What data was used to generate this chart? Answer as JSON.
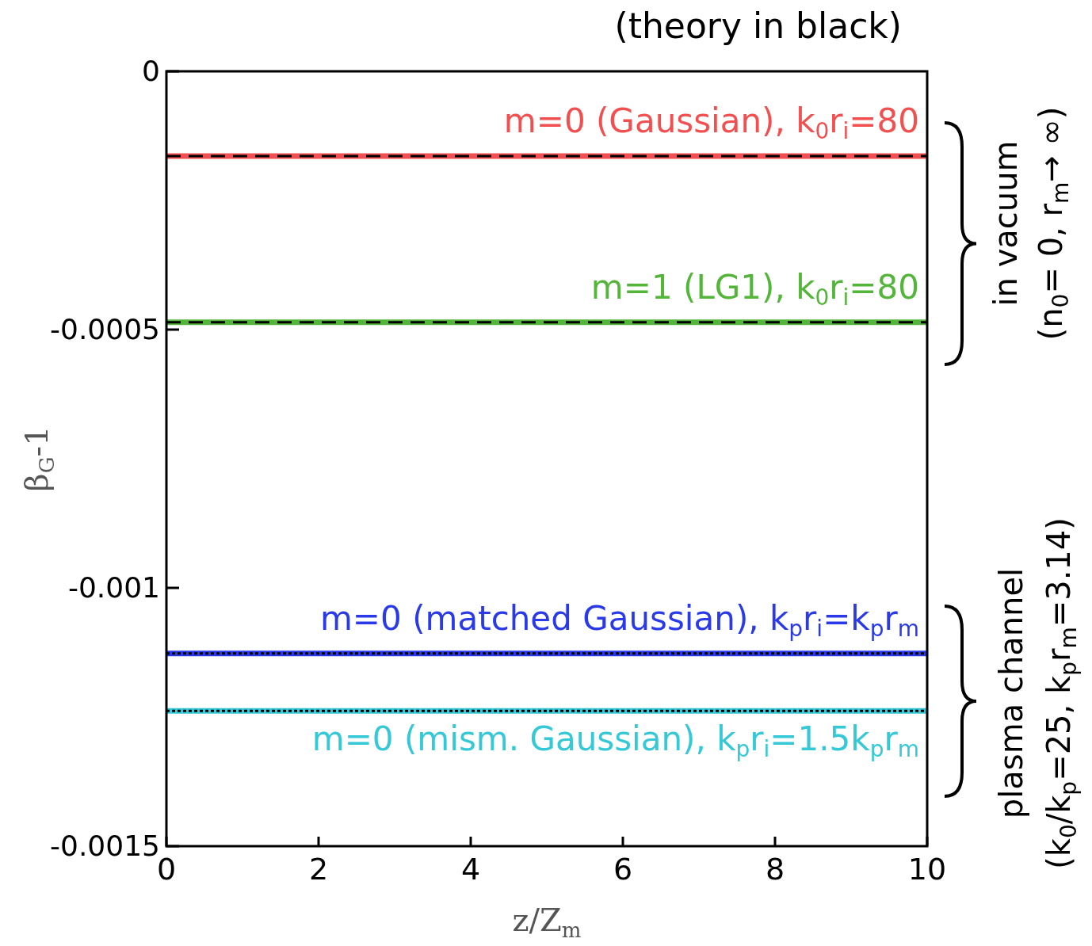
{
  "chart_data": {
    "type": "line",
    "xlabel": "z/Z$_{m}$",
    "ylabel": "β$_{G}$-1",
    "xlim": [
      0,
      10
    ],
    "xticks": [
      0,
      2,
      4,
      6,
      8,
      10
    ],
    "ylim": [
      -0.0015,
      0
    ],
    "yticks": [
      0,
      -0.0005,
      -0.001,
      -0.0015
    ],
    "x": [
      0,
      10
    ],
    "series": [
      {
        "name": "m=0 (Gaussian), k$_{0}$r$_{i}$=80",
        "color": "#f25050",
        "values": [
          -0.000164,
          -0.000164
        ]
      },
      {
        "name": "m=1 (LG1), k$_{0}$r$_{i}$=80",
        "color": "#53b53a",
        "values": [
          -0.000486,
          -0.000486
        ]
      },
      {
        "name": "m=0 (matched Gaussian), k$_{p}$r$_{i}$=k$_{p}$r$_{m}$",
        "color": "#2a3ae8",
        "values": [
          -0.001127,
          -0.001127
        ]
      },
      {
        "name": "m=0 (mism. Gaussian), k$_{p}$r$_{i}$=1.5k$_{p}$r$_{m}$",
        "color": "#35c8d6",
        "values": [
          -0.001238,
          -0.001238
        ]
      },
      {
        "color": "#000000",
        "line_style": "dashed",
        "values": [
          -0.000164,
          -0.000164
        ]
      },
      {
        "color": "#000000",
        "line_style": "dashed",
        "values": [
          -0.000486,
          -0.000486
        ]
      },
      {
        "color": "#000000",
        "line_style": "dotted",
        "values": [
          -0.001127,
          -0.001127
        ]
      },
      {
        "color": "#000000",
        "line_style": "dotted",
        "values": [
          -0.001238,
          -0.001238
        ]
      }
    ],
    "annotations": [
      "(theory in black)",
      "in vacuum",
      "(n$_{0}$= 0, r$_{m}$→ ∞)",
      "plasma  channel",
      "(k$_{0}$/k$_{p}$=25, k$_{p}$r$_{m}$=3.14)"
    ]
  }
}
